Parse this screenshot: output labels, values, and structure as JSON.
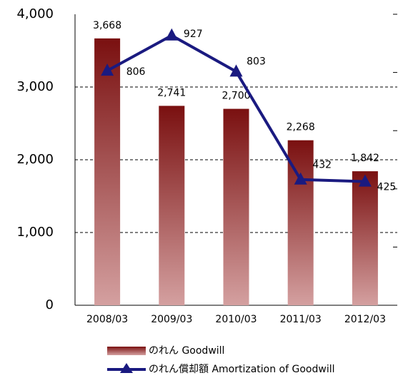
{
  "chart_data": {
    "type": "bar_line",
    "categories": [
      "2008/03",
      "2009/03",
      "2010/03",
      "2011/03",
      "2012/03"
    ],
    "series": [
      {
        "name": "のれん Goodwill",
        "type": "bar",
        "color": "#8b1a1a",
        "values": [
          3668,
          2741,
          2700,
          2268,
          1842
        ],
        "value_labels": [
          "3,668",
          "2,741",
          "2,700",
          "2,268",
          "1,842"
        ]
      },
      {
        "name": "のれん償却額 Amortization of Goodwill",
        "type": "line",
        "axis": "y2",
        "color": "#1a1a80",
        "values": [
          806,
          927,
          803,
          432,
          425
        ]
      }
    ],
    "ylim": [
      0,
      4000
    ],
    "yticks": [
      0,
      {
        "value": 1000,
        "label": "1,000"
      },
      {
        "value": 2000,
        "label": "2,000"
      },
      {
        "value": 3000,
        "label": "3,000"
      },
      {
        "value": 4000,
        "label": "4,000"
      }
    ],
    "y2lim": [
      0,
      1000
    ],
    "y2ticks": [
      0,
      200,
      400,
      600,
      800,
      1000
    ],
    "grid": true
  }
}
